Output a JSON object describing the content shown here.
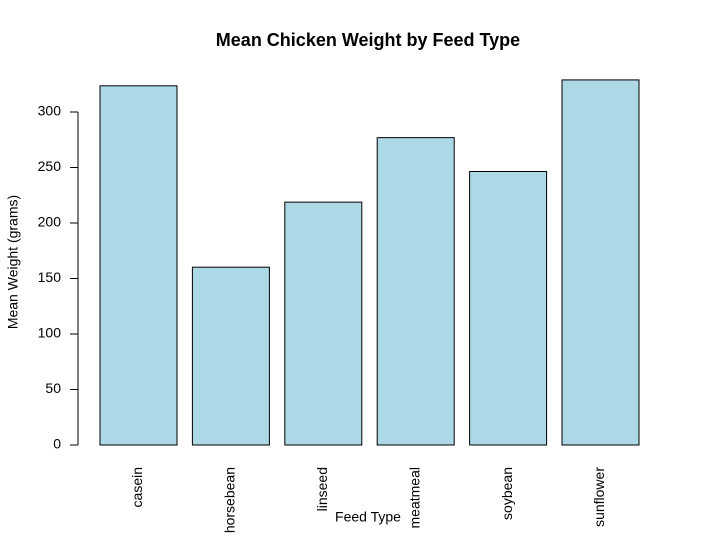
{
  "chart_data": {
    "type": "bar",
    "title": "Mean Chicken Weight by Feed Type",
    "x_label": "Feed Type",
    "y_label": "Mean Weight (grams)",
    "categories": [
      "casein",
      "horsebean",
      "linseed",
      "meatmeal",
      "soybean",
      "sunflower"
    ],
    "values": [
      323.6,
      160.2,
      218.8,
      276.9,
      246.4,
      328.9
    ],
    "color": "#add8e6",
    "ylim": [
      0,
      330
    ],
    "yticks": [
      0,
      50,
      100,
      150,
      200,
      250,
      300
    ]
  }
}
